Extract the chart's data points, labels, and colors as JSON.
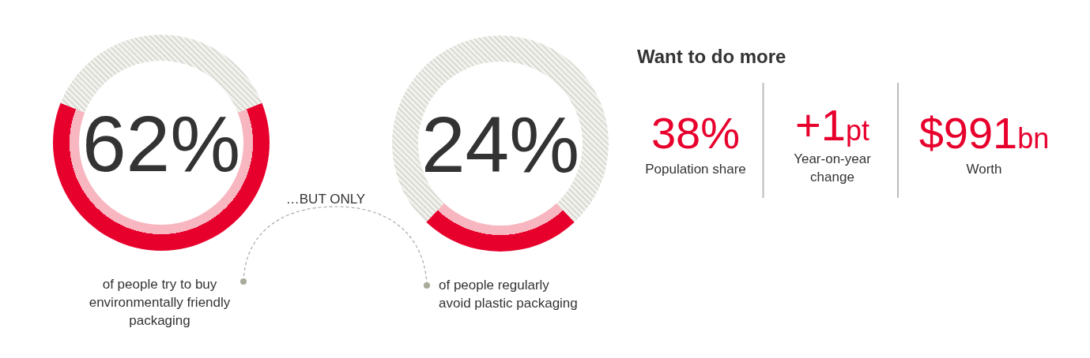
{
  "chart_data": [
    {
      "type": "donut",
      "categories": [
        null,
        null
      ],
      "values": [
        62,
        38
      ],
      "colors": [
        "#e8002d",
        "#cfcfc7"
      ],
      "value_labels": [
        "62%",
        null
      ],
      "annotations": [
        "of people try to buy\nenvironmentally friendly\npackaging"
      ]
    },
    {
      "type": "donut",
      "categories": [
        null,
        null
      ],
      "values": [
        24,
        76
      ],
      "colors": [
        "#e8002d",
        "#cfcfc7"
      ],
      "value_labels": [
        "24%",
        null
      ],
      "annotations": [
        "…BUT ONLY",
        "of people regularly\navoid plastic packaging"
      ]
    },
    {
      "type": "other",
      "title": "Want to do more",
      "annotations": [
        "38%",
        "Population share",
        "+1pt",
        "Year-on-year\nchange",
        "$991bn",
        "Worth"
      ]
    }
  ]
}
